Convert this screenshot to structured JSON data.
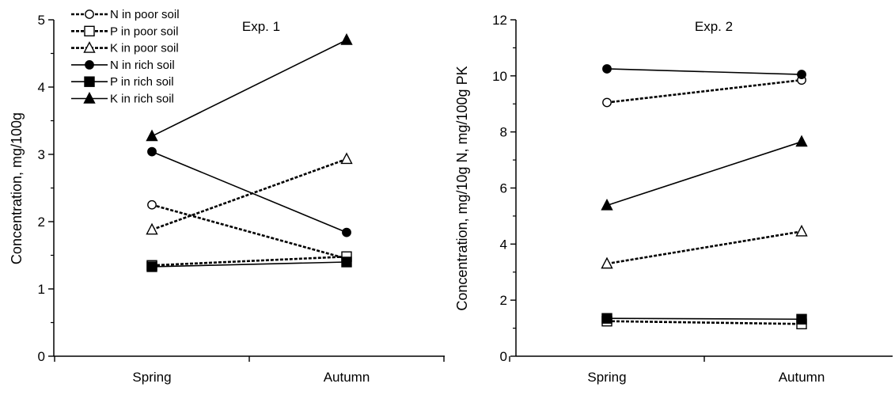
{
  "chart_data": [
    {
      "type": "line",
      "title": "Exp. 1",
      "categories": [
        "Spring",
        "Autumn"
      ],
      "ylabel": "Concentration, mg/100g",
      "ylim": [
        0,
        5
      ],
      "yticks": [
        0,
        1,
        2,
        3,
        4,
        5
      ],
      "legend": "top-left",
      "series": [
        {
          "name": "N in poor soil",
          "marker": "circle-open",
          "line": "dashed",
          "values": [
            2.25,
            1.45
          ]
        },
        {
          "name": "P in poor soil",
          "marker": "square-open",
          "line": "dashed",
          "values": [
            1.35,
            1.48
          ]
        },
        {
          "name": "K in poor soil",
          "marker": "triangle-open",
          "line": "dashed",
          "values": [
            1.88,
            2.93
          ]
        },
        {
          "name": "N in rich soil",
          "marker": "circle-filled",
          "line": "solid",
          "values": [
            3.04,
            1.84
          ]
        },
        {
          "name": "P in rich soil",
          "marker": "square-filled",
          "line": "solid",
          "values": [
            1.33,
            1.4
          ]
        },
        {
          "name": "K in rich soil",
          "marker": "triangle-filled",
          "line": "solid",
          "values": [
            3.27,
            4.7
          ]
        }
      ]
    },
    {
      "type": "line",
      "title": "Exp. 2",
      "categories": [
        "Spring",
        "Autumn"
      ],
      "ylabel": "Concentration, mg/10g N, mg/100g PK",
      "ylim": [
        0,
        12
      ],
      "yticks": [
        0,
        2,
        4,
        6,
        8,
        10,
        12
      ],
      "series": [
        {
          "marker": "circle-open",
          "line": "dashed",
          "values": [
            9.05,
            9.85
          ]
        },
        {
          "marker": "square-open",
          "line": "dashed",
          "values": [
            1.25,
            1.15
          ]
        },
        {
          "marker": "triangle-open",
          "line": "dashed",
          "values": [
            3.3,
            4.45
          ]
        },
        {
          "marker": "circle-filled",
          "line": "solid",
          "values": [
            10.25,
            10.05
          ]
        },
        {
          "marker": "square-filled",
          "line": "solid",
          "values": [
            1.35,
            1.32
          ]
        },
        {
          "marker": "triangle-filled",
          "line": "solid",
          "values": [
            5.38,
            7.65
          ]
        }
      ]
    }
  ]
}
